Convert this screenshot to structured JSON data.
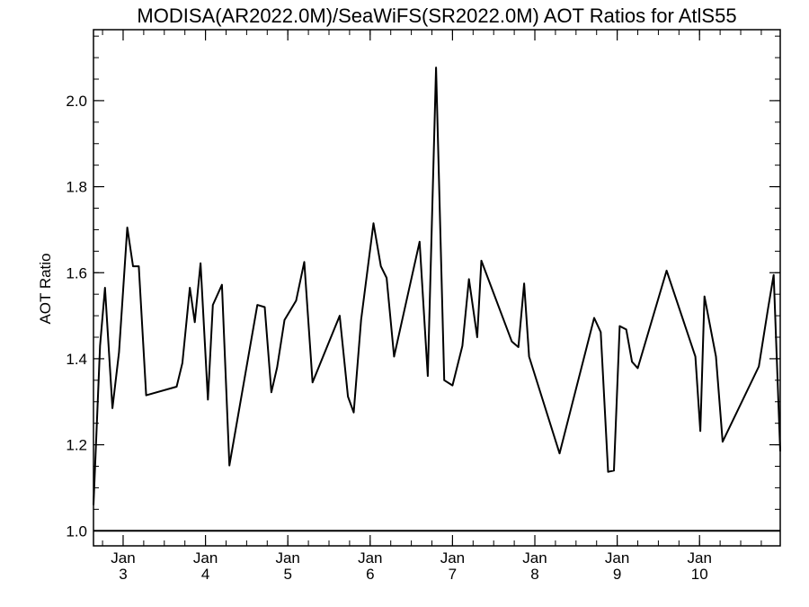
{
  "chart_data": {
    "type": "line",
    "title": "MODISA(AR2022.0M)/SeaWiFS(SR2022.0M)  AOT Ratios for AtlS55",
    "xlabel": "",
    "ylabel": "AOT Ratio",
    "ylim": [
      0.965,
      2.165
    ],
    "xlim": [
      2.64,
      10.98
    ],
    "yticks": [
      {
        "value": 1.0,
        "label": "1.0"
      },
      {
        "value": 1.2,
        "label": "1.2"
      },
      {
        "value": 1.4,
        "label": "1.4"
      },
      {
        "value": 1.6,
        "label": "1.6"
      },
      {
        "value": 1.8,
        "label": "1.8"
      },
      {
        "value": 2.0,
        "label": "2.0"
      }
    ],
    "xticks": [
      {
        "value": 3,
        "month": "Jan",
        "day": "3"
      },
      {
        "value": 4,
        "month": "Jan",
        "day": "4"
      },
      {
        "value": 5,
        "month": "Jan",
        "day": "5"
      },
      {
        "value": 6,
        "month": "Jan",
        "day": "6"
      },
      {
        "value": 7,
        "month": "Jan",
        "day": "7"
      },
      {
        "value": 8,
        "month": "Jan",
        "day": "8"
      },
      {
        "value": 9,
        "month": "Jan",
        "day": "9"
      },
      {
        "value": 10,
        "month": "Jan",
        "day": "10"
      }
    ],
    "reference_line": 1.0,
    "grid": false,
    "series": [
      {
        "color": "#000000",
        "x": [
          2.64,
          2.72,
          2.78,
          2.87,
          2.95,
          3.05,
          3.12,
          3.19,
          3.28,
          3.65,
          3.72,
          3.81,
          3.87,
          3.94,
          4.03,
          4.09,
          4.2,
          4.29,
          4.63,
          4.72,
          4.8,
          4.87,
          4.96,
          5.1,
          5.2,
          5.3,
          5.63,
          5.73,
          5.8,
          5.89,
          6.04,
          6.13,
          6.2,
          6.29,
          6.6,
          6.7,
          6.8,
          6.9,
          7.0,
          7.12,
          7.2,
          7.3,
          7.35,
          7.72,
          7.8,
          7.87,
          7.93,
          8.3,
          8.72,
          8.8,
          8.89,
          8.96,
          9.03,
          9.11,
          9.18,
          9.25,
          9.6,
          9.95,
          10.01,
          10.06,
          10.2,
          10.28,
          10.72,
          10.83,
          10.9,
          10.98
        ],
        "y": [
          1.06,
          1.43,
          1.565,
          1.285,
          1.415,
          1.705,
          1.615,
          1.615,
          1.315,
          1.335,
          1.39,
          1.565,
          1.485,
          1.622,
          1.305,
          1.525,
          1.572,
          1.152,
          1.525,
          1.52,
          1.322,
          1.38,
          1.49,
          1.535,
          1.625,
          1.345,
          1.5,
          1.312,
          1.275,
          1.49,
          1.715,
          1.615,
          1.588,
          1.405,
          1.672,
          1.36,
          2.077,
          1.35,
          1.338,
          1.43,
          1.585,
          1.45,
          1.628,
          1.44,
          1.427,
          1.575,
          1.405,
          1.18,
          1.495,
          1.462,
          1.137,
          1.14,
          1.476,
          1.468,
          1.393,
          1.378,
          1.605,
          1.405,
          1.232,
          1.545,
          1.405,
          1.207,
          1.382,
          1.515,
          1.595,
          1.185
        ]
      }
    ]
  }
}
